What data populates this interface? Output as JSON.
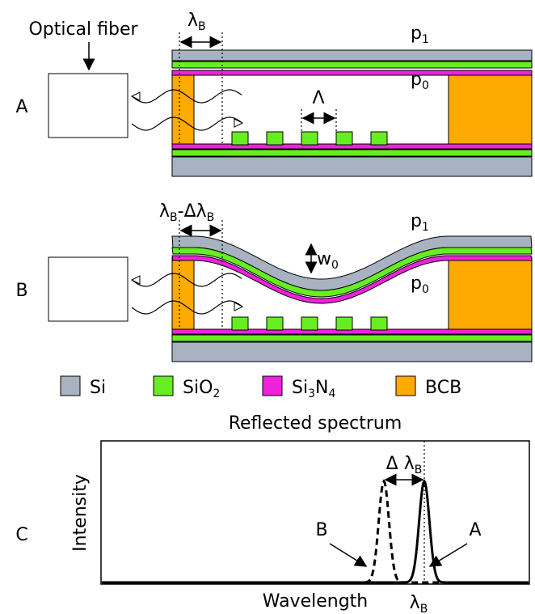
{
  "panel_a": {
    "label": "A",
    "fiber": "Optical fiber",
    "bragg": [
      "λ",
      "B"
    ],
    "period": [
      "Λ"
    ],
    "p_top": [
      "p",
      "1"
    ],
    "p_cavity": [
      "p",
      "0"
    ]
  },
  "panel_b": {
    "label": "B",
    "shift": [
      "λ",
      "B",
      "-Δλ",
      "B"
    ],
    "deflection": [
      "w",
      "0"
    ],
    "p_top": [
      "p",
      "1"
    ],
    "p_cavity": [
      "p",
      "0"
    ]
  },
  "legend": [
    {
      "parts": [
        "Si"
      ],
      "color": "#a8b2c1"
    },
    {
      "parts": [
        "SiO",
        "2"
      ],
      "color": "#66ee22"
    },
    {
      "parts": [
        "Si",
        "3",
        "N",
        "4"
      ],
      "color": "#ee22dd"
    },
    {
      "parts": [
        "BCB"
      ],
      "color": "#ffaa00"
    }
  ],
  "panel_c": {
    "label": "C",
    "title": "Reflected spectrum",
    "y_label": "Intensity",
    "x_label": "Wavelength",
    "peak_tick": [
      "λ",
      "B"
    ],
    "delta": [
      "Δ λ",
      "B"
    ],
    "curve_b": "B",
    "curve_a": "A"
  }
}
